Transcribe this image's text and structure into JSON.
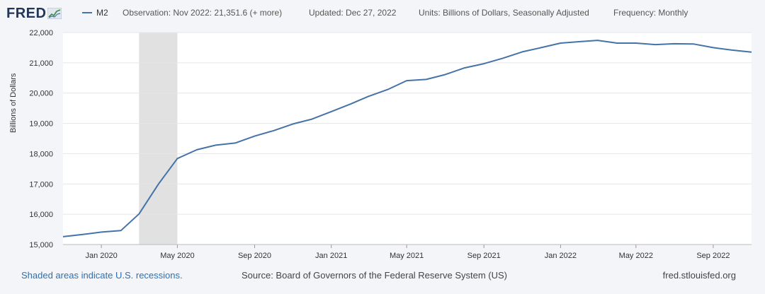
{
  "header": {
    "logo_text": "FRED",
    "legend_label": "M2",
    "observation": "Observation: Nov 2022: 21,351.6 (+ more)",
    "updated": "Updated: Dec 27, 2022",
    "units": "Units: Billions of Dollars, Seasonally Adjusted",
    "frequency": "Frequency: Monthly"
  },
  "footer": {
    "note": "Shaded areas indicate U.S. recessions.",
    "source": "Source: Board of Governors of the Federal Reserve System (US)",
    "site": "fred.stlouisfed.org"
  },
  "colors": {
    "series": "#4572a7",
    "recession": "#e1e1e1",
    "grid": "#e6e6e6",
    "background": "#ffffff"
  },
  "chart_data": {
    "type": "line",
    "title": "",
    "xlabel": "",
    "ylabel": "Billions of Dollars",
    "ylim": [
      15000,
      22000
    ],
    "yticks": [
      15000,
      16000,
      17000,
      18000,
      19000,
      20000,
      21000,
      22000
    ],
    "ytick_labels": [
      "15,000",
      "16,000",
      "17,000",
      "18,000",
      "19,000",
      "20,000",
      "21,000",
      "22,000"
    ],
    "xlim": [
      "2019-11-01",
      "2022-11-01"
    ],
    "xticks": [
      "2020-01-01",
      "2020-05-01",
      "2020-09-01",
      "2021-01-01",
      "2021-05-01",
      "2021-09-01",
      "2022-01-01",
      "2022-05-01",
      "2022-09-01"
    ],
    "xtick_labels": [
      "Jan 2020",
      "May 2020",
      "Sep 2020",
      "Jan 2021",
      "May 2021",
      "Sep 2021",
      "Jan 2022",
      "May 2022",
      "Sep 2022"
    ],
    "grid": true,
    "recession": {
      "start": "2020-03-01",
      "end": "2020-05-01"
    },
    "series": [
      {
        "name": "M2",
        "x": [
          "2019-11-01",
          "2019-12-01",
          "2020-01-01",
          "2020-02-01",
          "2020-03-01",
          "2020-04-01",
          "2020-05-01",
          "2020-06-01",
          "2020-07-01",
          "2020-08-01",
          "2020-09-01",
          "2020-10-01",
          "2020-11-01",
          "2020-12-01",
          "2021-01-01",
          "2021-02-01",
          "2021-03-01",
          "2021-04-01",
          "2021-05-01",
          "2021-06-01",
          "2021-07-01",
          "2021-08-01",
          "2021-09-01",
          "2021-10-01",
          "2021-11-01",
          "2021-12-01",
          "2022-01-01",
          "2022-02-01",
          "2022-03-01",
          "2022-04-01",
          "2022-05-01",
          "2022-06-01",
          "2022-07-01",
          "2022-08-01",
          "2022-09-01",
          "2022-10-01",
          "2022-11-01"
        ],
        "y": [
          15260,
          15330,
          15410,
          15460,
          16010,
          17000,
          17840,
          18130,
          18280,
          18350,
          18580,
          18760,
          18980,
          19140,
          19390,
          19640,
          19890,
          20120,
          20410,
          20450,
          20610,
          20830,
          20970,
          21150,
          21360,
          21500,
          21650,
          21700,
          21740,
          21650,
          21650,
          21600,
          21630,
          21620,
          21500,
          21420,
          21352
        ]
      }
    ]
  }
}
